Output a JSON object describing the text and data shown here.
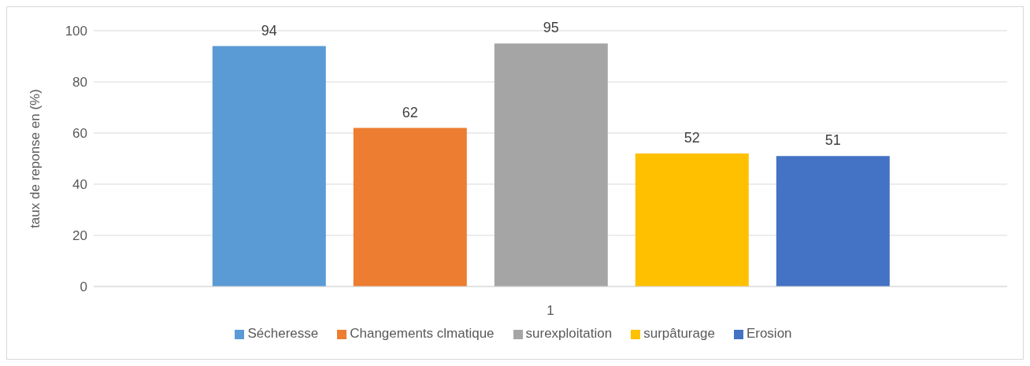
{
  "chart_data": {
    "type": "bar",
    "categories": [
      "1"
    ],
    "ylabel": "taux de reponse en (%)",
    "series": [
      {
        "name": "Sécheresse",
        "color": "#5b9bd5",
        "values": [
          94
        ]
      },
      {
        "name": "Changements clmatique",
        "color": "#ed7d31",
        "values": [
          62
        ]
      },
      {
        "name": "surexploitation",
        "color": "#a5a5a5",
        "values": [
          95
        ]
      },
      {
        "name": "surpâturage",
        "color": "#ffc000",
        "values": [
          52
        ]
      },
      {
        "name": "Erosion",
        "color": "#4472c4",
        "values": [
          51
        ]
      }
    ],
    "ylim": [
      0,
      100
    ],
    "yticks": [
      0,
      20,
      40,
      60,
      80,
      100
    ],
    "grid": "y",
    "legend": "bottom",
    "data_labels": true
  }
}
